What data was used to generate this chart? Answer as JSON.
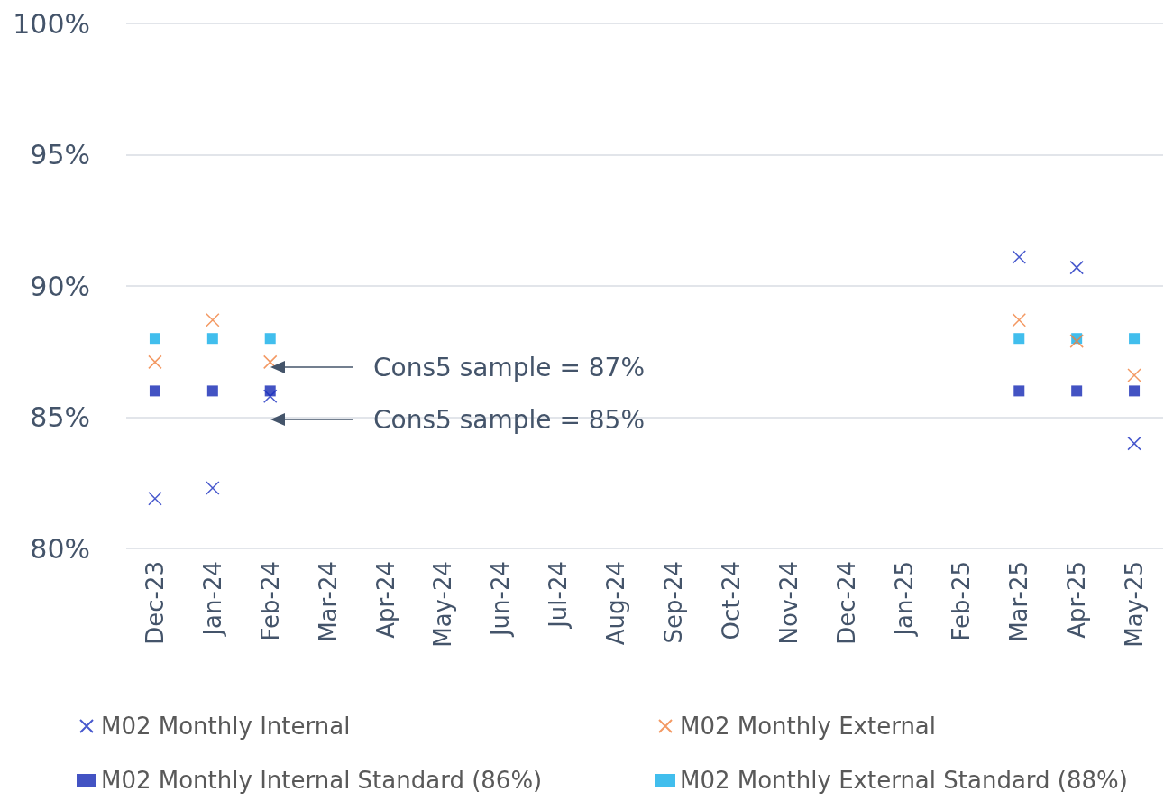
{
  "chart_data": {
    "type": "scatter",
    "categories": [
      "Dec-23",
      "Jan-24",
      "Feb-24",
      "Mar-24",
      "Apr-24",
      "May-24",
      "Jun-24",
      "Jul-24",
      "Aug-24",
      "Sep-24",
      "Oct-24",
      "Nov-24",
      "Dec-24",
      "Jan-25",
      "Feb-25",
      "Mar-25",
      "Apr-25",
      "May-25"
    ],
    "series": [
      {
        "name": "M02 Monthly Internal",
        "color": "#1a2fc0",
        "marker": "cross",
        "values": [
          81.9,
          82.3,
          85.8,
          null,
          null,
          null,
          null,
          null,
          null,
          null,
          null,
          null,
          null,
          null,
          null,
          91.1,
          90.7,
          84.0
        ]
      },
      {
        "name": "M02 Monthly External",
        "color": "#f07f3c",
        "marker": "cross",
        "values": [
          87.1,
          88.7,
          87.1,
          null,
          null,
          null,
          null,
          null,
          null,
          null,
          null,
          null,
          null,
          null,
          null,
          88.7,
          87.9,
          86.6
        ]
      },
      {
        "name": "M02 Monthly Internal Standard (86%)",
        "color": "#1428b4",
        "marker": "square",
        "values": [
          86,
          86,
          86,
          null,
          null,
          null,
          null,
          null,
          null,
          null,
          null,
          null,
          null,
          null,
          null,
          86,
          86,
          86
        ]
      },
      {
        "name": "M02 Monthly External Standard (88%)",
        "color": "#12aee8",
        "marker": "square",
        "values": [
          88,
          88,
          88,
          null,
          null,
          null,
          null,
          null,
          null,
          null,
          null,
          null,
          null,
          null,
          null,
          88,
          88,
          88
        ]
      }
    ],
    "ylim": [
      80,
      100
    ],
    "yticks": [
      {
        "value": 80,
        "label": "80%"
      },
      {
        "value": 85,
        "label": "85%"
      },
      {
        "value": 90,
        "label": "90%"
      },
      {
        "value": 95,
        "label": "95%"
      },
      {
        "value": 100,
        "label": "100%"
      }
    ],
    "grid": "y",
    "legend": "bottom",
    "annotations": [
      "Cons5 sample = 87%",
      "Cons5 sample = 85%"
    ]
  }
}
